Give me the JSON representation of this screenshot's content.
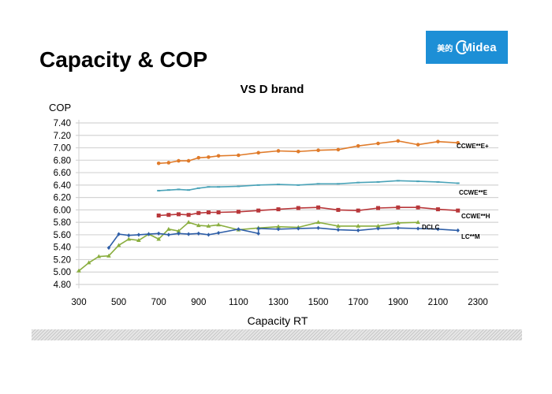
{
  "slide": {
    "title": "Capacity & COP",
    "logo": {
      "cn": "美的",
      "en": "Midea",
      "color": "#1d8fd6"
    }
  },
  "chart_data": {
    "type": "line",
    "title": "VS D brand",
    "xlabel": "Capacity RT",
    "ylabel": "COP",
    "xlim": [
      300,
      2300
    ],
    "ylim": [
      4.8,
      7.4
    ],
    "x_ticks": [
      "300",
      "500",
      "700",
      "900",
      "1100",
      "1300",
      "1500",
      "1700",
      "1900",
      "2100",
      "2300"
    ],
    "y_ticks": [
      "7.40",
      "7.20",
      "7.00",
      "6.80",
      "6.60",
      "6.40",
      "6.20",
      "6.00",
      "5.80",
      "5.60",
      "5.40",
      "5.20",
      "5.00",
      "4.80"
    ],
    "grid": "horizontal",
    "legend": "inline-right",
    "series": [
      {
        "name": "CCWE**E+",
        "color": "#e07b2a",
        "marker": "circle",
        "x": [
          700,
          750,
          800,
          850,
          900,
          950,
          1000,
          1100,
          1200,
          1300,
          1400,
          1500,
          1600,
          1700,
          1800,
          1900,
          2000,
          2100,
          2200
        ],
        "y": [
          6.75,
          6.76,
          6.79,
          6.79,
          6.84,
          6.85,
          6.87,
          6.88,
          6.92,
          6.95,
          6.94,
          6.96,
          6.97,
          7.03,
          7.07,
          7.11,
          7.05,
          7.1,
          7.08
        ]
      },
      {
        "name": "CCWE**E",
        "color": "#4aa3b8",
        "marker": "dash",
        "x": [
          700,
          750,
          800,
          850,
          900,
          950,
          1000,
          1100,
          1200,
          1300,
          1400,
          1500,
          1600,
          1700,
          1800,
          1900,
          2000,
          2100,
          2200
        ],
        "y": [
          6.31,
          6.32,
          6.33,
          6.32,
          6.35,
          6.37,
          6.37,
          6.38,
          6.4,
          6.41,
          6.4,
          6.42,
          6.42,
          6.44,
          6.45,
          6.47,
          6.46,
          6.45,
          6.43
        ]
      },
      {
        "name": "CCWE**H",
        "color": "#b8373a",
        "marker": "square",
        "x": [
          700,
          750,
          800,
          850,
          900,
          950,
          1000,
          1100,
          1200,
          1300,
          1400,
          1500,
          1600,
          1700,
          1800,
          1900,
          2000,
          2100,
          2200
        ],
        "y": [
          5.91,
          5.92,
          5.93,
          5.92,
          5.95,
          5.96,
          5.96,
          5.97,
          5.99,
          6.01,
          6.03,
          6.04,
          6.0,
          5.99,
          6.03,
          6.04,
          6.04,
          6.01,
          5.99
        ]
      },
      {
        "name": "DCLC",
        "color": "#8aae3f",
        "marker": "triangle",
        "x": [
          300,
          350,
          400,
          450,
          500,
          550,
          600,
          650,
          700,
          750,
          800,
          850,
          900,
          950,
          1000,
          1100,
          1200,
          1300,
          1400,
          1500,
          1600,
          1700,
          1800,
          1900,
          2000
        ],
        "y": [
          5.02,
          5.15,
          5.25,
          5.26,
          5.43,
          5.53,
          5.51,
          5.61,
          5.53,
          5.69,
          5.66,
          5.8,
          5.75,
          5.74,
          5.76,
          5.68,
          5.71,
          5.73,
          5.72,
          5.8,
          5.74,
          5.74,
          5.74,
          5.79,
          5.8
        ]
      },
      {
        "name": "LC**M",
        "color": "#2f5fa8",
        "marker": "diamond",
        "x": [
          450,
          500,
          550,
          600,
          650,
          700,
          750,
          800,
          850,
          900,
          950,
          1000,
          1100,
          1200,
          1200,
          1300,
          1400,
          1500,
          1600,
          1700,
          1800,
          1900,
          2000,
          2100,
          2200
        ],
        "y": [
          5.39,
          5.61,
          5.59,
          5.6,
          5.61,
          5.62,
          5.6,
          5.62,
          5.61,
          5.62,
          5.6,
          5.63,
          5.69,
          5.62,
          5.7,
          5.69,
          5.7,
          5.71,
          5.68,
          5.67,
          5.7,
          5.71,
          5.7,
          5.69,
          5.67
        ]
      }
    ]
  }
}
